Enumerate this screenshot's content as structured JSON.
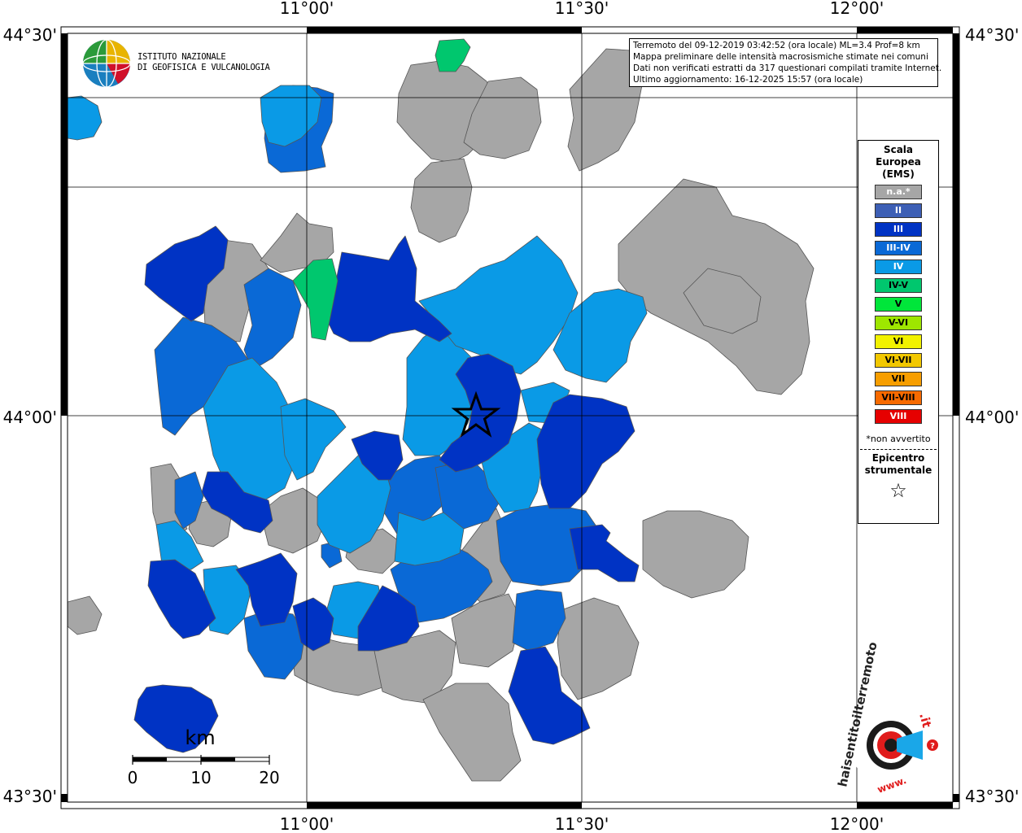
{
  "frame": {
    "top_labels": [
      "11°00'",
      "11°30'",
      "12°00'"
    ],
    "bottom_labels": [
      "11°00'",
      "11°30'",
      "12°00'"
    ],
    "left_labels": [
      "44°30'",
      "44°00'",
      "43°30'"
    ],
    "right_labels": [
      "44°30'",
      "44°00'",
      "43°30'"
    ]
  },
  "logo": {
    "line1": "ISTITUTO NAZIONALE",
    "line2": "DI GEOFISICA E VULCANOLOGIA"
  },
  "info": {
    "line1": "Terremoto del 09-12-2019 03:42:52 (ora locale) ML=3.4 Prof=8 km",
    "line2": "Mappa preliminare delle intensità macrosismiche stimate nei comuni",
    "line3": "Dati non verificati estratti da 317 questionari compilati tramite Internet.",
    "line4": "Ultimo aggiornamento: 16-12-2025 15:57 (ora locale)"
  },
  "legend": {
    "title1": "Scala",
    "title2": "Europea",
    "title3": "(EMS)",
    "items": [
      {
        "label": "n.a.*",
        "color": "#a6a6a6",
        "text_color": "#ffffff"
      },
      {
        "label": "II",
        "color": "#3d5fb5",
        "text_color": "#ffffff"
      },
      {
        "label": "III",
        "color": "#0033c4",
        "text_color": "#ffffff"
      },
      {
        "label": "III-IV",
        "color": "#0a69d6",
        "text_color": "#ffffff"
      },
      {
        "label": "IV",
        "color": "#0a9ae6",
        "text_color": "#ffffff"
      },
      {
        "label": "IV-V",
        "color": "#00c76e",
        "text_color": "#000000"
      },
      {
        "label": "V",
        "color": "#00e63a",
        "text_color": "#000000"
      },
      {
        "label": "V-VI",
        "color": "#9ee600",
        "text_color": "#000000"
      },
      {
        "label": "VI",
        "color": "#f2f200",
        "text_color": "#000000"
      },
      {
        "label": "VI-VII",
        "color": "#f2c800",
        "text_color": "#000000"
      },
      {
        "label": "VII",
        "color": "#f79e00",
        "text_color": "#000000"
      },
      {
        "label": "VII-VIII",
        "color": "#f76a00",
        "text_color": "#000000"
      },
      {
        "label": "VIII",
        "color": "#e60000",
        "text_color": "#ffffff"
      }
    ],
    "note": "*non avvertito",
    "epicenter1": "Epicentro",
    "epicenter2": "strumentale",
    "star": "☆"
  },
  "scale_bar": {
    "unit": "km",
    "ticks": [
      "0",
      "10",
      "20"
    ]
  },
  "hsit_logo": {
    "text1": "haisentitoilterremoto",
    "text2": ".it",
    "text3": "www.",
    "badge": "?"
  }
}
